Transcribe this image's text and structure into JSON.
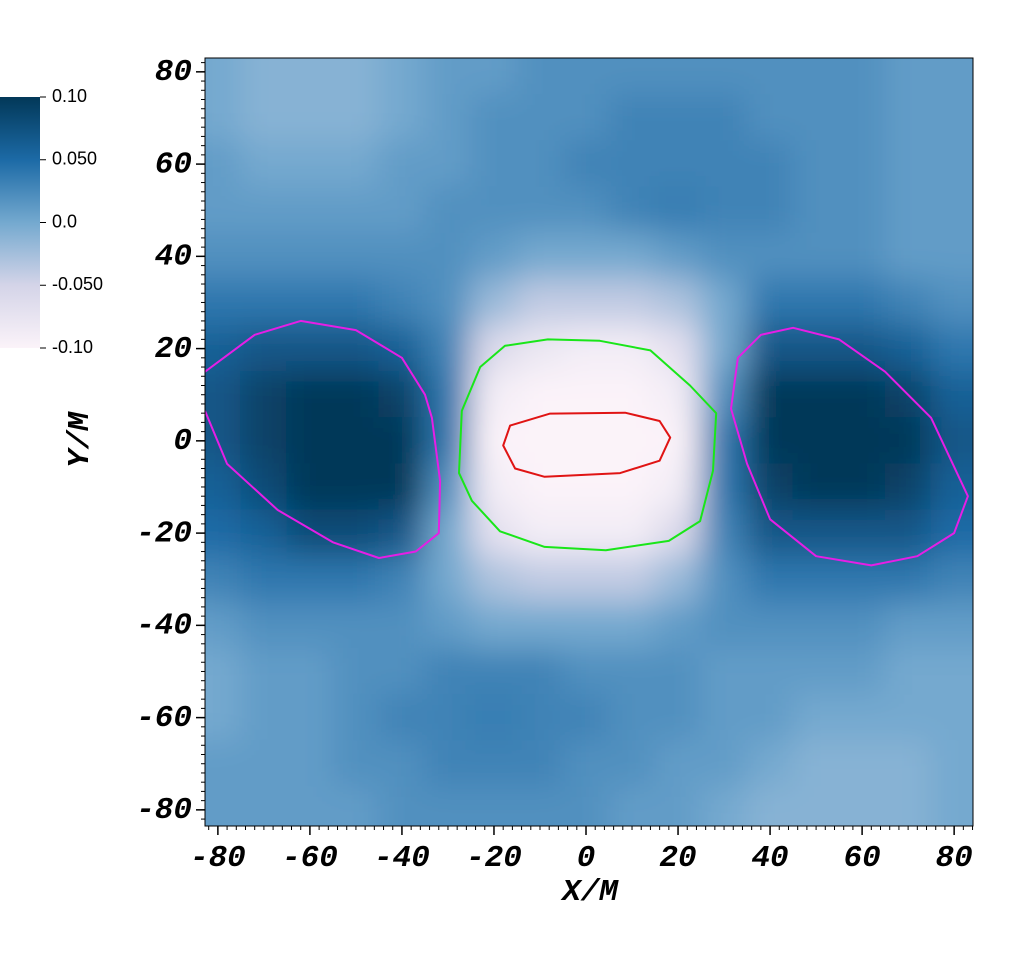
{
  "chart_data": {
    "type": "heatmap",
    "x_label": "X/M",
    "y_label": "Y/M",
    "xlim": [
      -82.8,
      84.1
    ],
    "ylim": [
      -83.5,
      83.0
    ],
    "xticks": [
      -80,
      -60,
      -40,
      -20,
      0,
      20,
      40,
      60,
      80
    ],
    "yticks": [
      -80,
      -60,
      -40,
      -20,
      0,
      20,
      40,
      60,
      80
    ],
    "clim": [
      -0.1,
      0.1
    ],
    "cticks": [
      {
        "value": 0.1,
        "label": "0.10"
      },
      {
        "value": 0.05,
        "label": "0.050"
      },
      {
        "value": 0,
        "label": "0.0"
      },
      {
        "value": -0.05,
        "label": "-0.050"
      },
      {
        "value": -0.1,
        "label": "-0.10"
      }
    ],
    "colormap": [
      "#fbf3f9",
      "#d4d4e8",
      "#74a9cf",
      "#1c6aa6",
      "#023858"
    ],
    "field": {
      "x": [
        -80,
        -70,
        -60,
        -50,
        -40,
        -30,
        -20,
        -10,
        0,
        10,
        20,
        30,
        40,
        50,
        60,
        70,
        80
      ],
      "y": [
        80,
        70,
        60,
        50,
        40,
        30,
        20,
        10,
        0,
        -10,
        -20,
        -30,
        -40,
        -50,
        -60,
        -70,
        -80
      ],
      "z": [
        [
          0.0,
          -0.01,
          -0.01,
          -0.01,
          0.0,
          0.01,
          0.01,
          0.02,
          0.02,
          0.02,
          0.02,
          0.02,
          0.02,
          0.02,
          0.02,
          0.01,
          0.01
        ],
        [
          0.0,
          -0.01,
          -0.01,
          -0.01,
          0.0,
          0.01,
          0.02,
          0.02,
          0.02,
          0.03,
          0.03,
          0.03,
          0.02,
          0.02,
          0.02,
          0.01,
          0.01
        ],
        [
          0.01,
          0.0,
          0.0,
          0.0,
          0.01,
          0.01,
          0.02,
          0.02,
          0.03,
          0.03,
          0.03,
          0.03,
          0.03,
          0.02,
          0.02,
          0.01,
          0.01
        ],
        [
          0.01,
          0.01,
          0.01,
          0.01,
          0.01,
          0.02,
          0.02,
          0.02,
          0.02,
          0.03,
          0.035,
          0.03,
          0.03,
          0.02,
          0.02,
          0.01,
          0.01
        ],
        [
          0.02,
          0.02,
          0.02,
          0.02,
          0.02,
          0.02,
          0.01,
          0.0,
          0.0,
          0.0,
          0.01,
          0.02,
          0.02,
          0.02,
          0.02,
          0.01,
          0.01
        ],
        [
          0.04,
          0.04,
          0.04,
          0.04,
          0.03,
          0.02,
          -0.02,
          -0.04,
          -0.04,
          -0.04,
          -0.03,
          0.0,
          0.04,
          0.04,
          0.04,
          0.03,
          0.02
        ],
        [
          0.06,
          0.07,
          0.07,
          0.07,
          0.06,
          0.03,
          -0.06,
          -0.08,
          -0.09,
          -0.09,
          -0.07,
          0.0,
          0.07,
          0.07,
          0.07,
          0.06,
          0.04
        ],
        [
          0.07,
          0.09,
          0.1,
          0.1,
          0.09,
          0.04,
          -0.09,
          -0.1,
          -0.1,
          -0.1,
          -0.09,
          0.02,
          0.1,
          0.1,
          0.1,
          0.09,
          0.06
        ],
        [
          0.07,
          0.09,
          0.1,
          0.1,
          0.1,
          0.04,
          -0.1,
          -0.1,
          -0.1,
          -0.1,
          -0.1,
          0.04,
          0.1,
          0.1,
          0.1,
          0.1,
          0.07
        ],
        [
          0.06,
          0.08,
          0.1,
          0.1,
          0.1,
          0.02,
          -0.09,
          -0.1,
          -0.1,
          -0.1,
          -0.09,
          0.04,
          0.09,
          0.1,
          0.1,
          0.09,
          0.06
        ],
        [
          0.05,
          0.06,
          0.08,
          0.08,
          0.07,
          0.0,
          -0.07,
          -0.09,
          -0.09,
          -0.09,
          -0.06,
          0.03,
          0.07,
          0.07,
          0.07,
          0.07,
          0.05
        ],
        [
          0.03,
          0.04,
          0.04,
          0.04,
          0.03,
          0.0,
          -0.03,
          -0.04,
          -0.04,
          -0.04,
          -0.02,
          0.02,
          0.04,
          0.04,
          0.04,
          0.04,
          0.03
        ],
        [
          0.01,
          0.02,
          0.02,
          0.02,
          0.02,
          0.01,
          0.0,
          0.0,
          0.0,
          0.0,
          0.01,
          0.02,
          0.02,
          0.02,
          0.02,
          0.01,
          0.01
        ],
        [
          0.0,
          0.01,
          0.01,
          0.02,
          0.02,
          0.03,
          0.03,
          0.03,
          0.02,
          0.02,
          0.02,
          0.01,
          0.01,
          0.01,
          0.01,
          0.0,
          0.0
        ],
        [
          0.0,
          0.01,
          0.01,
          0.02,
          0.03,
          0.03,
          0.035,
          0.03,
          0.03,
          0.02,
          0.02,
          0.01,
          0.01,
          0.0,
          0.0,
          0.0,
          0.0
        ],
        [
          0.01,
          0.01,
          0.01,
          0.02,
          0.02,
          0.03,
          0.03,
          0.03,
          0.02,
          0.02,
          0.01,
          0.01,
          0.0,
          -0.01,
          -0.01,
          -0.01,
          0.0
        ],
        [
          0.01,
          0.01,
          0.01,
          0.01,
          0.02,
          0.02,
          0.02,
          0.02,
          0.02,
          0.01,
          0.01,
          0.0,
          -0.01,
          -0.01,
          -0.01,
          -0.01,
          0.0
        ]
      ]
    },
    "contours": [
      {
        "color": "#e61ee6",
        "closed": false,
        "x": [
          -82.8,
          -72,
          -62,
          -50,
          -40,
          -35,
          -33.5,
          -31.7,
          -32,
          -37,
          -45,
          -55,
          -67,
          -78,
          -82.8
        ],
        "y": [
          15,
          23,
          26,
          24,
          18,
          10,
          5,
          -8.7,
          -20,
          -24,
          -25.4,
          -22,
          -15,
          -5,
          6.5
        ]
      },
      {
        "color": "#e61ee6",
        "closed": true,
        "x": [
          31.5,
          33,
          38,
          45,
          55,
          65,
          75,
          83,
          80,
          72,
          62,
          50,
          40,
          35
        ],
        "y": [
          7,
          18,
          23,
          24.5,
          22,
          15,
          5,
          -12,
          -20,
          -25,
          -27,
          -25,
          -17,
          -5
        ]
      },
      {
        "color": "#19e619",
        "closed": true,
        "x": [
          -27.6,
          -27,
          -23,
          -17.6,
          -8.3,
          3,
          14,
          22.6,
          28.3,
          27.6,
          24.8,
          18,
          4.3,
          -9,
          -18.7,
          -24.8
        ],
        "y": [
          -7,
          6.5,
          16,
          20.6,
          22,
          21.7,
          19.6,
          12,
          6,
          -6.5,
          -17.4,
          -21.7,
          -23.7,
          -23,
          -19.6,
          -13
        ]
      },
      {
        "color": "#e01414",
        "closed": true,
        "x": [
          -18,
          -16.5,
          -7.8,
          8.5,
          16,
          18.3,
          16,
          7.4,
          -9,
          -15.4
        ],
        "y": [
          -1,
          3.3,
          5.9,
          6.1,
          4.3,
          0.7,
          -4.3,
          -7,
          -7.8,
          -6
        ]
      }
    ]
  }
}
